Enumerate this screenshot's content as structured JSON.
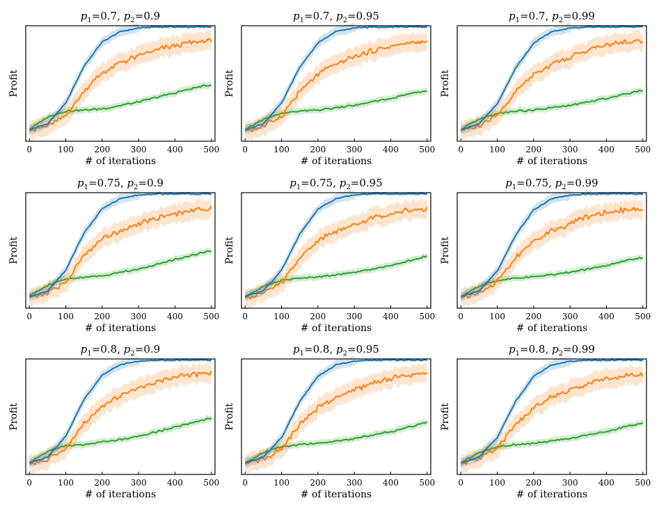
{
  "figure": {
    "colors": {
      "blue": "#1f77b4",
      "orange": "#ff7f0e",
      "green": "#2ca02c"
    },
    "shared_x_label": "# of iterations",
    "shared_y_label": "Profit"
  },
  "chart_data": [
    {
      "type": "line",
      "p1": "0.7",
      "p2": "0.9",
      "xlabel": "# of iterations",
      "ylabel": "Profit",
      "xlim": [
        -10,
        510
      ],
      "ylim": [
        0,
        1
      ],
      "xticks": [
        0,
        100,
        200,
        300,
        400,
        500
      ],
      "series": [
        {
          "name": "blue",
          "x": [
            0,
            50,
            100,
            150,
            200,
            250,
            300,
            350,
            400,
            450,
            500
          ],
          "values": [
            0.1,
            0.15,
            0.33,
            0.65,
            0.86,
            0.95,
            0.98,
            0.99,
            0.99,
            0.99,
            0.99
          ]
        },
        {
          "name": "orange",
          "x": [
            0,
            50,
            100,
            150,
            200,
            250,
            300,
            350,
            400,
            450,
            500
          ],
          "values": [
            0.09,
            0.13,
            0.22,
            0.44,
            0.59,
            0.68,
            0.74,
            0.79,
            0.83,
            0.86,
            0.87
          ]
        },
        {
          "name": "green",
          "x": [
            0,
            50,
            100,
            150,
            200,
            250,
            300,
            350,
            400,
            450,
            500
          ],
          "values": [
            0.1,
            0.21,
            0.26,
            0.27,
            0.28,
            0.31,
            0.34,
            0.38,
            0.42,
            0.46,
            0.49
          ]
        }
      ]
    },
    {
      "type": "line",
      "p1": "0.7",
      "p2": "0.95",
      "xlabel": "# of iterations",
      "ylabel": "Profit",
      "xlim": [
        -10,
        510
      ],
      "ylim": [
        0,
        1
      ],
      "xticks": [
        0,
        100,
        200,
        300,
        400,
        500
      ],
      "series": [
        {
          "name": "blue",
          "x": [
            0,
            50,
            100,
            150,
            200,
            250,
            300,
            350,
            400,
            450,
            500
          ],
          "values": [
            0.1,
            0.15,
            0.33,
            0.64,
            0.85,
            0.95,
            0.98,
            0.99,
            0.99,
            0.99,
            0.99
          ]
        },
        {
          "name": "orange",
          "x": [
            0,
            50,
            100,
            150,
            200,
            250,
            300,
            350,
            400,
            450,
            500
          ],
          "values": [
            0.09,
            0.13,
            0.22,
            0.43,
            0.58,
            0.67,
            0.73,
            0.78,
            0.82,
            0.85,
            0.86
          ]
        },
        {
          "name": "green",
          "x": [
            0,
            50,
            100,
            150,
            200,
            250,
            300,
            350,
            400,
            450,
            500
          ],
          "values": [
            0.1,
            0.19,
            0.24,
            0.26,
            0.27,
            0.29,
            0.31,
            0.34,
            0.37,
            0.41,
            0.44
          ]
        }
      ]
    },
    {
      "type": "line",
      "p1": "0.7",
      "p2": "0.99",
      "xlabel": "# of iterations",
      "ylabel": "Profit",
      "xlim": [
        -10,
        510
      ],
      "ylim": [
        0,
        1
      ],
      "xticks": [
        0,
        100,
        200,
        300,
        400,
        500
      ],
      "series": [
        {
          "name": "blue",
          "x": [
            0,
            50,
            100,
            150,
            200,
            250,
            300,
            350,
            400,
            450,
            500
          ],
          "values": [
            0.1,
            0.15,
            0.32,
            0.63,
            0.85,
            0.95,
            0.98,
            0.99,
            0.99,
            0.99,
            0.99
          ]
        },
        {
          "name": "orange",
          "x": [
            0,
            50,
            100,
            150,
            200,
            250,
            300,
            350,
            400,
            450,
            500
          ],
          "values": [
            0.09,
            0.13,
            0.22,
            0.43,
            0.58,
            0.67,
            0.73,
            0.79,
            0.83,
            0.86,
            0.87
          ]
        },
        {
          "name": "green",
          "x": [
            0,
            50,
            100,
            150,
            200,
            250,
            300,
            350,
            400,
            450,
            500
          ],
          "values": [
            0.1,
            0.19,
            0.24,
            0.26,
            0.27,
            0.29,
            0.31,
            0.34,
            0.37,
            0.41,
            0.44
          ]
        }
      ]
    },
    {
      "type": "line",
      "p1": "0.75",
      "p2": "0.9",
      "xlabel": "# of iterations",
      "ylabel": "Profit",
      "xlim": [
        -10,
        510
      ],
      "ylim": [
        0,
        1
      ],
      "xticks": [
        0,
        100,
        200,
        300,
        400,
        500
      ],
      "series": [
        {
          "name": "blue",
          "x": [
            0,
            50,
            100,
            150,
            200,
            250,
            300,
            350,
            400,
            450,
            500
          ],
          "values": [
            0.1,
            0.15,
            0.33,
            0.65,
            0.86,
            0.95,
            0.98,
            0.99,
            0.99,
            0.99,
            0.99
          ]
        },
        {
          "name": "orange",
          "x": [
            0,
            50,
            100,
            150,
            200,
            250,
            300,
            350,
            400,
            450,
            500
          ],
          "values": [
            0.09,
            0.13,
            0.22,
            0.46,
            0.6,
            0.68,
            0.73,
            0.78,
            0.82,
            0.85,
            0.86
          ]
        },
        {
          "name": "green",
          "x": [
            0,
            50,
            100,
            150,
            200,
            250,
            300,
            350,
            400,
            450,
            500
          ],
          "values": [
            0.11,
            0.2,
            0.25,
            0.27,
            0.28,
            0.31,
            0.34,
            0.38,
            0.42,
            0.46,
            0.5
          ]
        }
      ]
    },
    {
      "type": "line",
      "p1": "0.75",
      "p2": "0.95",
      "xlabel": "# of iterations",
      "ylabel": "Profit",
      "xlim": [
        -10,
        510
      ],
      "ylim": [
        0,
        1
      ],
      "xticks": [
        0,
        100,
        200,
        300,
        400,
        500
      ],
      "series": [
        {
          "name": "blue",
          "x": [
            0,
            50,
            100,
            150,
            200,
            250,
            300,
            350,
            400,
            450,
            500
          ],
          "values": [
            0.1,
            0.15,
            0.33,
            0.64,
            0.86,
            0.95,
            0.98,
            0.99,
            0.99,
            0.99,
            0.99
          ]
        },
        {
          "name": "orange",
          "x": [
            0,
            50,
            100,
            150,
            200,
            250,
            300,
            350,
            400,
            450,
            500
          ],
          "values": [
            0.09,
            0.13,
            0.22,
            0.44,
            0.59,
            0.67,
            0.73,
            0.78,
            0.82,
            0.85,
            0.86
          ]
        },
        {
          "name": "green",
          "x": [
            0,
            50,
            100,
            150,
            200,
            250,
            300,
            350,
            400,
            450,
            500
          ],
          "values": [
            0.1,
            0.19,
            0.24,
            0.26,
            0.27,
            0.29,
            0.31,
            0.34,
            0.37,
            0.41,
            0.45
          ]
        }
      ]
    },
    {
      "type": "line",
      "p1": "0.75",
      "p2": "0.99",
      "xlabel": "# of iterations",
      "ylabel": "Profit",
      "xlim": [
        -10,
        510
      ],
      "ylim": [
        0,
        1
      ],
      "xticks": [
        0,
        100,
        200,
        300,
        400,
        500
      ],
      "series": [
        {
          "name": "blue",
          "x": [
            0,
            50,
            100,
            150,
            200,
            250,
            300,
            350,
            400,
            450,
            500
          ],
          "values": [
            0.1,
            0.15,
            0.32,
            0.63,
            0.85,
            0.95,
            0.98,
            0.99,
            0.99,
            0.99,
            0.99
          ]
        },
        {
          "name": "orange",
          "x": [
            0,
            50,
            100,
            150,
            200,
            250,
            300,
            350,
            400,
            450,
            500
          ],
          "values": [
            0.09,
            0.13,
            0.23,
            0.44,
            0.59,
            0.67,
            0.73,
            0.79,
            0.83,
            0.85,
            0.86
          ]
        },
        {
          "name": "green",
          "x": [
            0,
            50,
            100,
            150,
            200,
            250,
            300,
            350,
            400,
            450,
            500
          ],
          "values": [
            0.1,
            0.19,
            0.24,
            0.26,
            0.27,
            0.29,
            0.31,
            0.34,
            0.37,
            0.41,
            0.44
          ]
        }
      ]
    },
    {
      "type": "line",
      "p1": "0.8",
      "p2": "0.9",
      "xlabel": "# of iterations",
      "ylabel": "Profit",
      "xlim": [
        -10,
        510
      ],
      "ylim": [
        0,
        1
      ],
      "xticks": [
        0,
        100,
        200,
        300,
        400,
        500
      ],
      "series": [
        {
          "name": "blue",
          "x": [
            0,
            50,
            100,
            150,
            200,
            250,
            300,
            350,
            400,
            450,
            500
          ],
          "values": [
            0.1,
            0.15,
            0.33,
            0.65,
            0.86,
            0.95,
            0.98,
            0.99,
            0.99,
            0.99,
            0.99
          ]
        },
        {
          "name": "orange",
          "x": [
            0,
            50,
            100,
            150,
            200,
            250,
            300,
            350,
            400,
            450,
            500
          ],
          "values": [
            0.09,
            0.13,
            0.22,
            0.44,
            0.59,
            0.68,
            0.74,
            0.8,
            0.84,
            0.87,
            0.88
          ]
        },
        {
          "name": "green",
          "x": [
            0,
            50,
            100,
            150,
            200,
            250,
            300,
            350,
            400,
            450,
            500
          ],
          "values": [
            0.1,
            0.2,
            0.25,
            0.26,
            0.28,
            0.3,
            0.33,
            0.37,
            0.41,
            0.45,
            0.49
          ]
        }
      ]
    },
    {
      "type": "line",
      "p1": "0.8",
      "p2": "0.95",
      "xlabel": "# of iterations",
      "ylabel": "Profit",
      "xlim": [
        -10,
        510
      ],
      "ylim": [
        0,
        1
      ],
      "xticks": [
        0,
        100,
        200,
        300,
        400,
        500
      ],
      "series": [
        {
          "name": "blue",
          "x": [
            0,
            50,
            100,
            150,
            200,
            250,
            300,
            350,
            400,
            450,
            500
          ],
          "values": [
            0.1,
            0.15,
            0.32,
            0.63,
            0.85,
            0.95,
            0.98,
            0.99,
            0.99,
            0.99,
            0.99
          ]
        },
        {
          "name": "orange",
          "x": [
            0,
            50,
            100,
            150,
            200,
            250,
            300,
            350,
            400,
            450,
            500
          ],
          "values": [
            0.09,
            0.13,
            0.22,
            0.43,
            0.58,
            0.67,
            0.73,
            0.79,
            0.83,
            0.86,
            0.87
          ]
        },
        {
          "name": "green",
          "x": [
            0,
            50,
            100,
            150,
            200,
            250,
            300,
            350,
            400,
            450,
            500
          ],
          "values": [
            0.1,
            0.19,
            0.24,
            0.26,
            0.27,
            0.29,
            0.31,
            0.34,
            0.37,
            0.41,
            0.45
          ]
        }
      ]
    },
    {
      "type": "line",
      "p1": "0.8",
      "p2": "0.99",
      "xlabel": "# of iterations",
      "ylabel": "Profit",
      "xlim": [
        -10,
        510
      ],
      "ylim": [
        0,
        1
      ],
      "xticks": [
        0,
        100,
        200,
        300,
        400,
        500
      ],
      "series": [
        {
          "name": "blue",
          "x": [
            0,
            50,
            100,
            150,
            200,
            250,
            300,
            350,
            400,
            450,
            500
          ],
          "values": [
            0.1,
            0.15,
            0.32,
            0.63,
            0.85,
            0.95,
            0.98,
            0.99,
            0.99,
            0.99,
            0.99
          ]
        },
        {
          "name": "orange",
          "x": [
            0,
            50,
            100,
            150,
            200,
            250,
            300,
            350,
            400,
            450,
            500
          ],
          "values": [
            0.09,
            0.13,
            0.22,
            0.43,
            0.58,
            0.67,
            0.73,
            0.79,
            0.83,
            0.86,
            0.87
          ]
        },
        {
          "name": "green",
          "x": [
            0,
            50,
            100,
            150,
            200,
            250,
            300,
            350,
            400,
            450,
            500
          ],
          "values": [
            0.1,
            0.19,
            0.24,
            0.26,
            0.27,
            0.29,
            0.31,
            0.34,
            0.37,
            0.41,
            0.45
          ]
        }
      ]
    }
  ]
}
